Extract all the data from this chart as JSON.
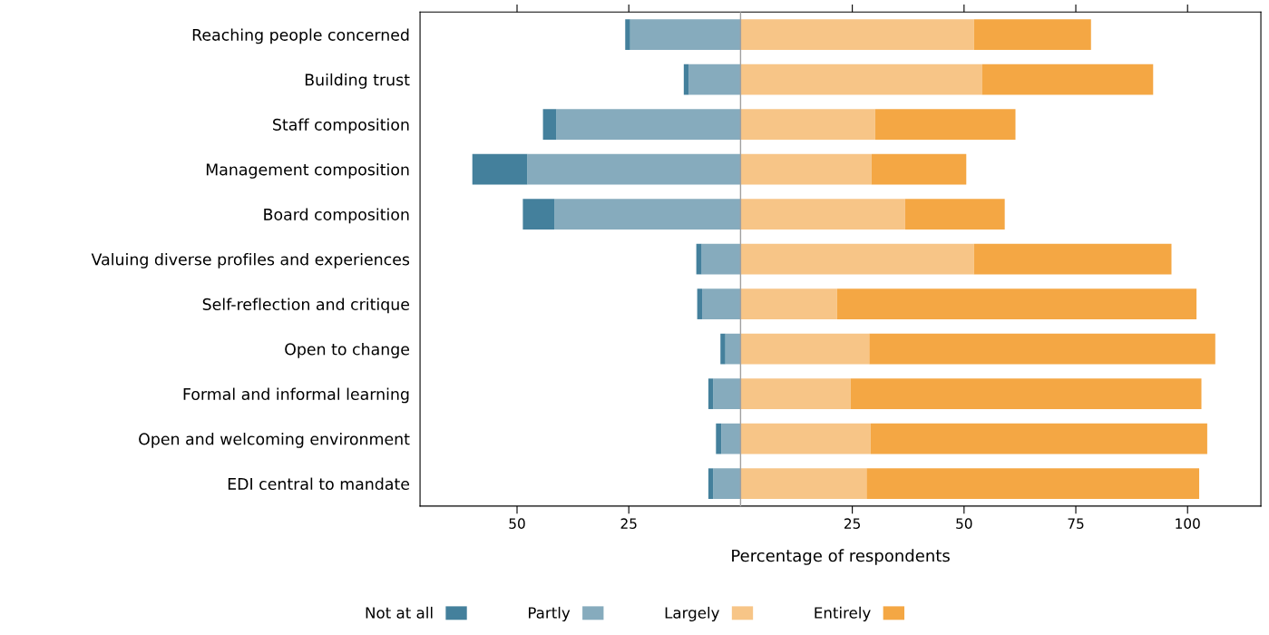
{
  "chart_data": {
    "type": "bar",
    "orientation": "horizontal",
    "stacked": true,
    "xlabel": "Percentage of respondents",
    "categories": [
      "Reaching people concerned",
      "Building trust",
      "Staff composition",
      "Management composition",
      "Board composition",
      "Valuing diverse profiles and experiences",
      "Self-reflection and critique",
      "Open to change",
      "Formal and informal learning",
      "Open and welcoming environment",
      "EDI central to mandate"
    ],
    "series": [
      {
        "name": "Partly",
        "color": "#86abbd",
        "values": [
          -24.7,
          -11.6,
          -41.2,
          -47.7,
          -41.6,
          -8.7,
          -8.6,
          -3.4,
          -6.1,
          -4.3,
          -6.1
        ]
      },
      {
        "name": "Not at all",
        "color": "#44809c",
        "values": [
          -1.1,
          -1.1,
          -3.0,
          -12.3,
          -7.1,
          -1.2,
          -1.1,
          -1.1,
          -1.1,
          -1.2,
          -1.1
        ]
      },
      {
        "name": "Largely",
        "color": "#f7c587",
        "values": [
          52.2,
          54.0,
          30.1,
          29.3,
          36.8,
          52.2,
          21.6,
          28.8,
          24.6,
          29.1,
          28.2
        ]
      },
      {
        "name": "Entirely",
        "color": "#f4a744",
        "values": [
          26.2,
          38.3,
          31.4,
          21.2,
          22.3,
          44.2,
          80.4,
          77.4,
          78.5,
          75.3,
          74.4
        ]
      }
    ],
    "xlim": [
      -71.7,
      116.4
    ],
    "xticks": [
      {
        "value": -50,
        "label": "50"
      },
      {
        "value": -25,
        "label": "25"
      },
      25,
      50,
      75,
      100
    ],
    "ref_lines": [
      {
        "axis": "x",
        "value": 0,
        "color": "#a0a0a0"
      }
    ],
    "grid": false,
    "legend": "bottom"
  }
}
